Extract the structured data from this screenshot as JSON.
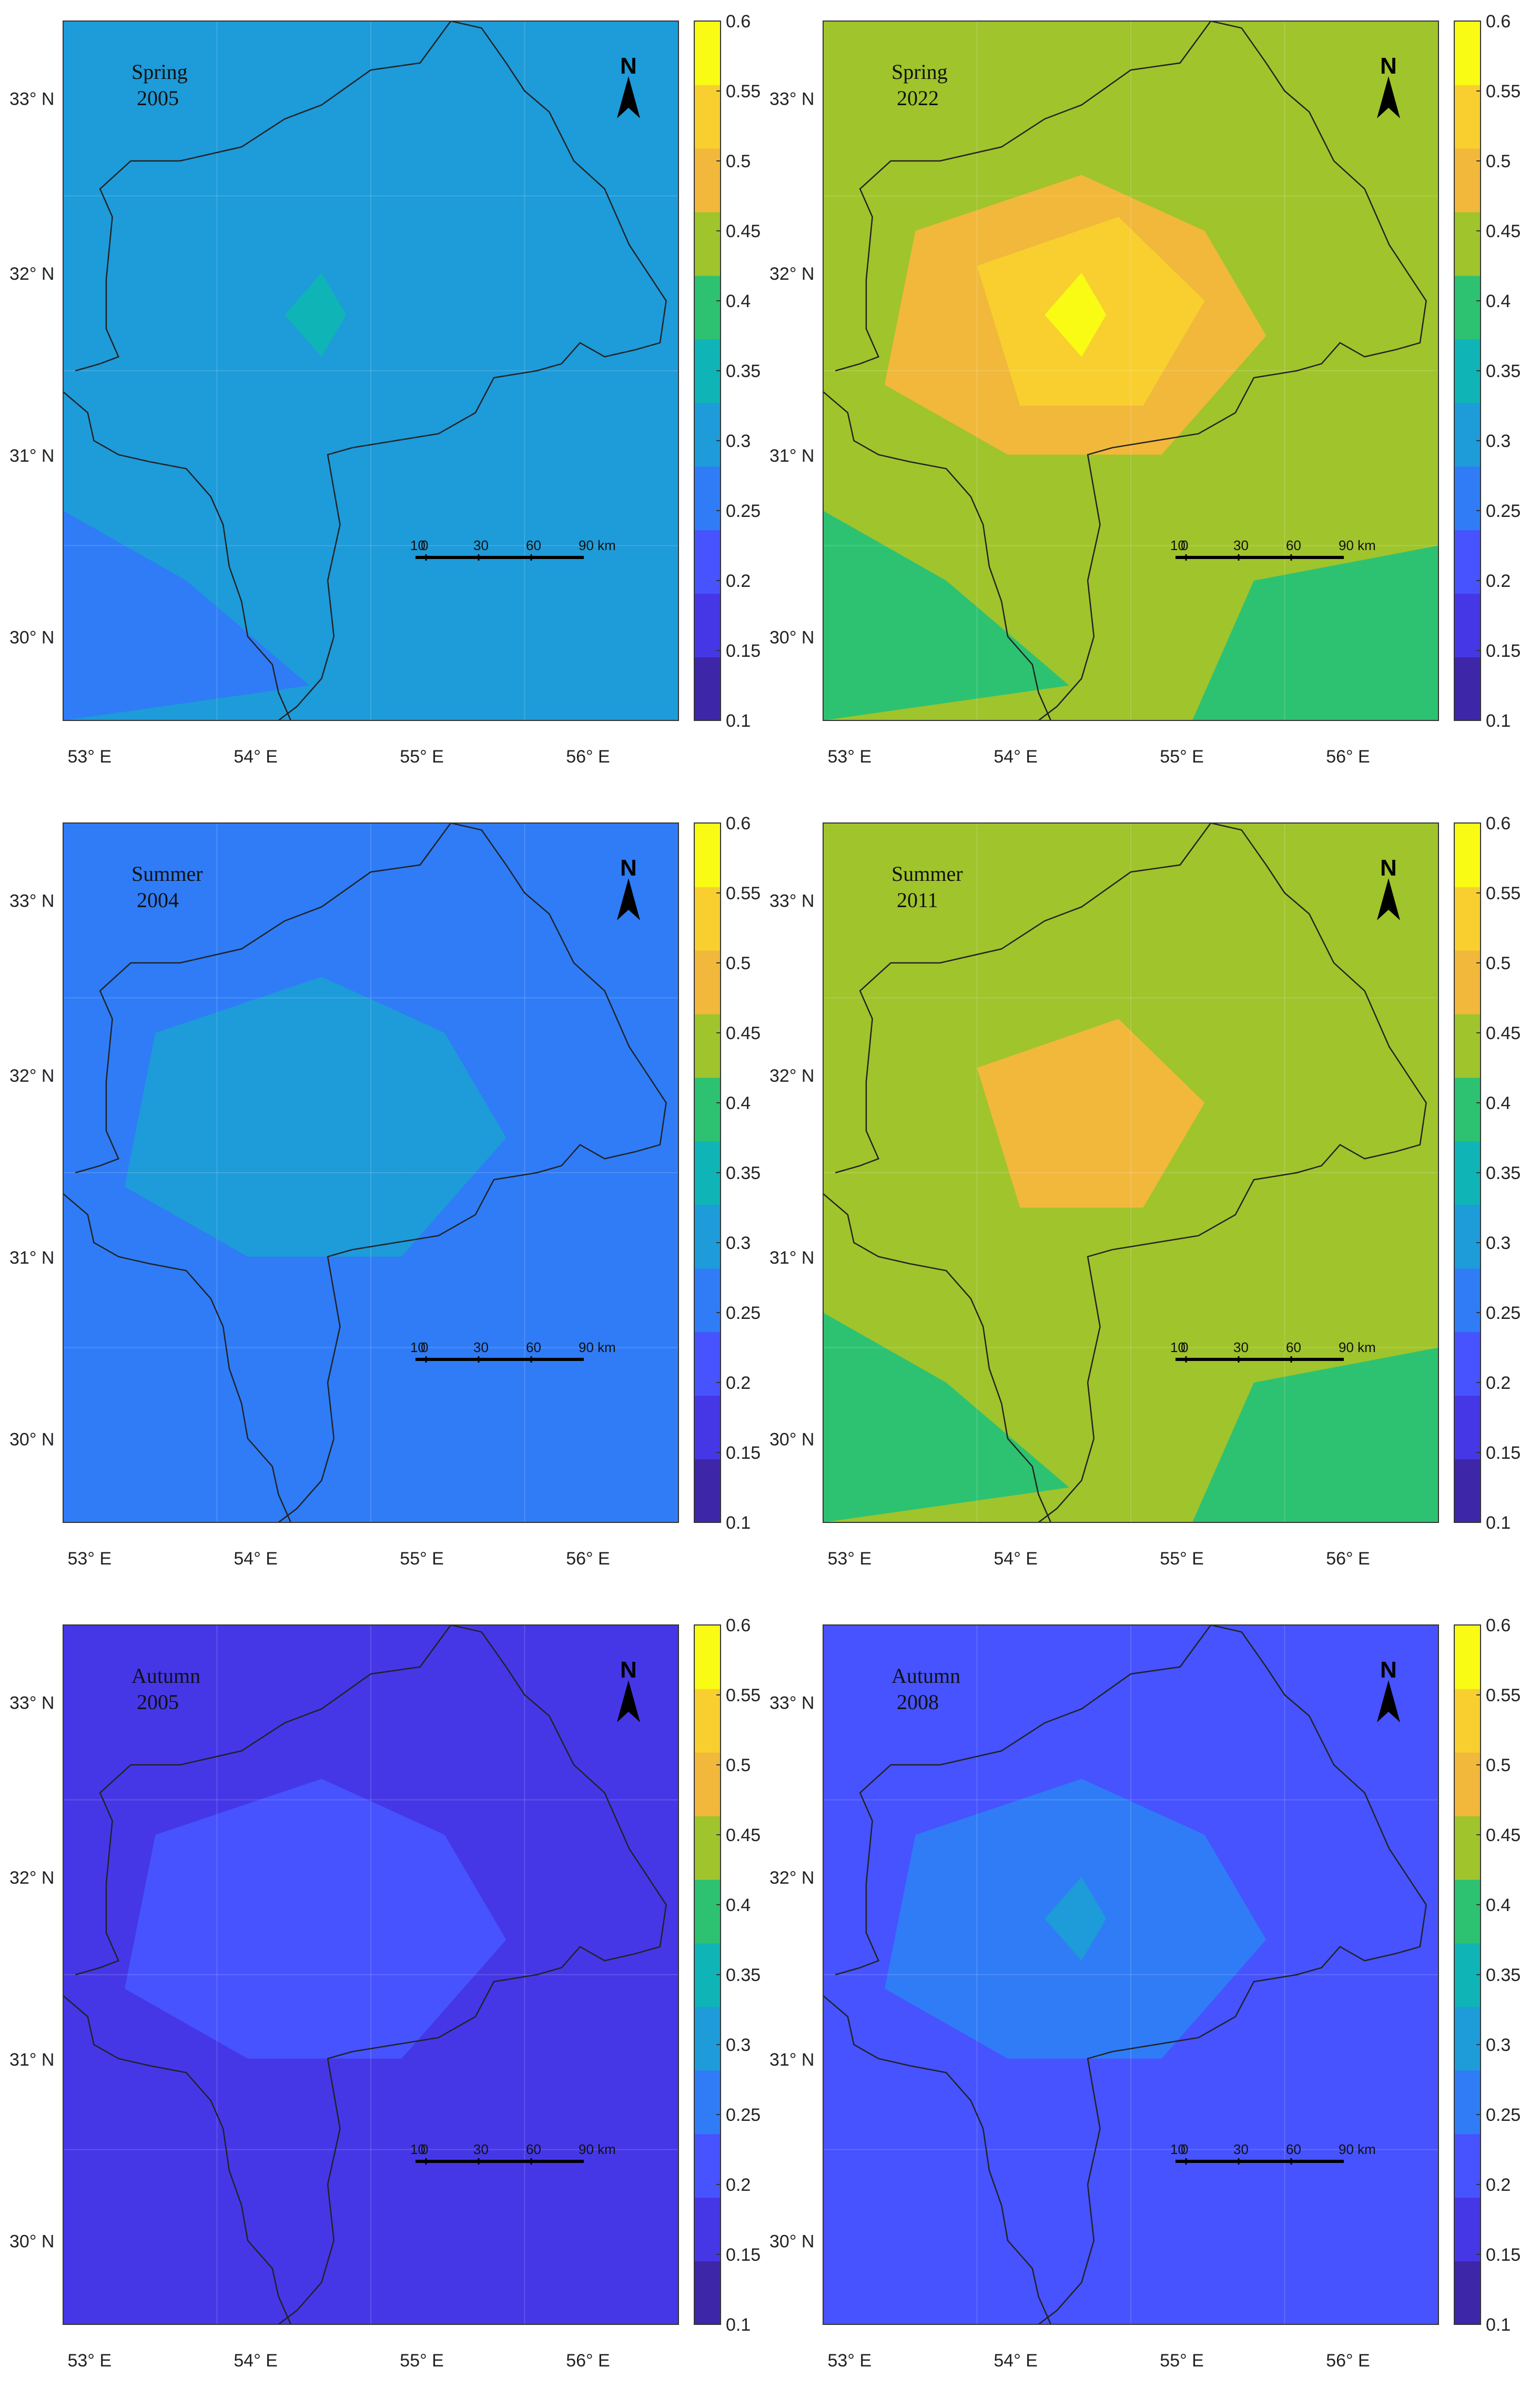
{
  "colorbar": {
    "ticks": [
      "0.6",
      "0.55",
      "0.5",
      "0.45",
      "0.4",
      "0.35",
      "0.3",
      "0.25",
      "0.2",
      "0.15",
      "0.1"
    ],
    "min": 0.1,
    "max": 0.6
  },
  "axes": {
    "lon_ticks": [
      "53° E",
      "54° E",
      "55° E",
      "56° E"
    ],
    "lat_ticks": [
      "33° N",
      "32° N",
      "31° N",
      "30° N"
    ]
  },
  "north_arrow_label": "N",
  "scale_bar": {
    "labels": [
      "10",
      "0",
      "30",
      "60",
      "90 km"
    ]
  },
  "panels": [
    {
      "season": "Spring",
      "year": "2005",
      "base_value": 0.29,
      "variation": "low"
    },
    {
      "season": "Spring",
      "year": "2022",
      "base_value": 0.46,
      "variation": "high"
    },
    {
      "season": "Summer",
      "year": "2004",
      "base_value": 0.27,
      "variation": "low"
    },
    {
      "season": "Summer",
      "year": "2011",
      "base_value": 0.43,
      "variation": "mid"
    },
    {
      "season": "Autumn",
      "year": "2005",
      "base_value": 0.17,
      "variation": "low"
    },
    {
      "season": "Autumn",
      "year": "2008",
      "base_value": 0.22,
      "variation": "mid"
    }
  ],
  "colors": {
    "c010": "#3e26a8",
    "c015": "#4537e6",
    "c020": "#4653fe",
    "c025": "#2f7cf6",
    "c030": "#1e9bd9",
    "c035": "#0fb4b7",
    "c040": "#2dc271",
    "c045": "#a0c42c",
    "c050": "#f1b83b",
    "c055": "#f8cf2f",
    "c060": "#f9fb15"
  }
}
